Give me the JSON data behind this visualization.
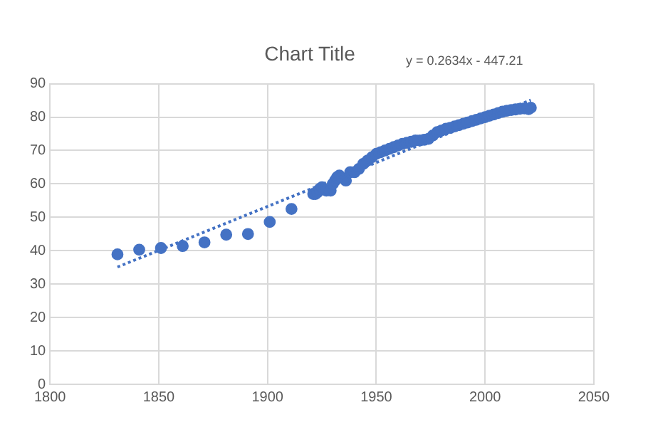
{
  "chart_data": {
    "type": "scatter",
    "title": "Chart Title",
    "annotations": [
      "y = 0.2634x - 447.21"
    ],
    "xlim": [
      1800,
      2050
    ],
    "xticks": [
      1800,
      1850,
      1900,
      1950,
      2000,
      2050
    ],
    "ylim": [
      0,
      90
    ],
    "yticks": [
      0,
      10,
      20,
      30,
      40,
      50,
      60,
      70,
      80,
      90
    ],
    "grid": true,
    "legend": false,
    "marker": "circle",
    "series": [
      {
        "color": "#4472c4",
        "x": [
          1831,
          1841,
          1851,
          1861,
          1871,
          1881,
          1891,
          1901,
          1911,
          1921,
          1922,
          1923,
          1924,
          1925,
          1927,
          1929,
          1930,
          1931,
          1932,
          1933,
          1936,
          1938,
          1940,
          1942,
          1944,
          1946,
          1948,
          1950,
          1952,
          1954,
          1956,
          1958,
          1960,
          1962,
          1964,
          1966,
          1968,
          1970,
          1972,
          1974,
          1976,
          1978,
          1980,
          1982,
          1984,
          1986,
          1988,
          1990,
          1992,
          1994,
          1996,
          1998,
          2000,
          2002,
          2004,
          2006,
          2008,
          2010,
          2012,
          2014,
          2016,
          2018,
          2020,
          2021
        ],
        "values": [
          38.9,
          40.3,
          40.8,
          41.4,
          42.5,
          44.8,
          45.0,
          48.6,
          52.5,
          57,
          57,
          57.5,
          58.5,
          59,
          58,
          58,
          60,
          61,
          62,
          62.5,
          61,
          63.5,
          63.5,
          64.5,
          66,
          67,
          68,
          69,
          69.5,
          70,
          70.5,
          71,
          71.5,
          72,
          72.3,
          72.6,
          73,
          73,
          73.2,
          73.5,
          74.5,
          75.5,
          76,
          76.5,
          76.8,
          77.2,
          77.6,
          78,
          78.4,
          78.8,
          79.2,
          79.6,
          80,
          80.4,
          80.8,
          81.2,
          81.6,
          81.9,
          82.1,
          82.3,
          82.5,
          82.6,
          82.4,
          82.8
        ]
      },
      {
        "type": "line",
        "color": "#4472c4",
        "line_style": "dotted",
        "marker": "none",
        "x": [
          1831,
          2021
        ],
        "values": [
          35.1,
          85.1
        ]
      }
    ]
  }
}
